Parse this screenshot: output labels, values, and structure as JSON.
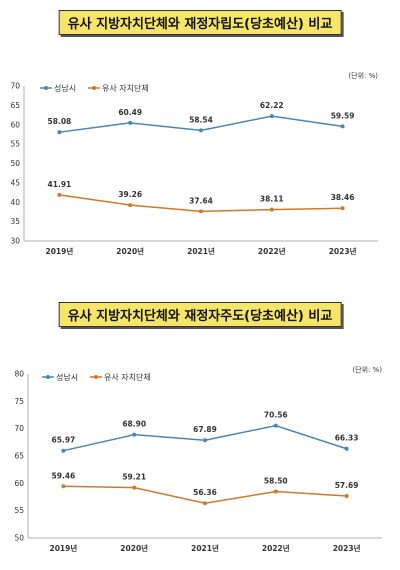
{
  "charts": [
    {
      "title": "유사 지방자치단체와 재정자립도(당초예산) 비교",
      "unit": "(단위: %)",
      "chart_data": {
        "type": "line",
        "categories": [
          "2019년",
          "2020년",
          "2021년",
          "2022년",
          "2023년"
        ],
        "ylim": [
          30,
          70
        ],
        "yticks": [
          30,
          35,
          40,
          45,
          50,
          55,
          60,
          65,
          70
        ],
        "legend": "top-left",
        "grid": false,
        "series": [
          {
            "name": "성남시",
            "color": "#4a86b4",
            "values": [
              58.08,
              60.49,
              58.54,
              62.22,
              59.59
            ],
            "labels": [
              "58.08",
              "60.49",
              "58.54",
              "62.22",
              "59.59"
            ]
          },
          {
            "name": "유사 자치단체",
            "color": "#d2782a",
            "values": [
              41.91,
              39.26,
              37.64,
              38.11,
              38.46
            ],
            "labels": [
              "41.91",
              "39.26",
              "37.64",
              "38.11",
              "38.46"
            ]
          }
        ]
      }
    },
    {
      "title": "유사 지방자치단체와 재정자주도(당초예산) 비교",
      "unit": "(단위: %)",
      "chart_data": {
        "type": "line",
        "categories": [
          "2019년",
          "2020년",
          "2021년",
          "2022년",
          "2023년"
        ],
        "ylim": [
          50,
          80
        ],
        "yticks": [
          50,
          55,
          60,
          65,
          70,
          75,
          80
        ],
        "legend": "top-left",
        "grid": false,
        "series": [
          {
            "name": "성남시",
            "color": "#4a86b4",
            "values": [
              65.97,
              68.9,
              67.89,
              70.56,
              66.33
            ],
            "labels": [
              "65.97",
              "68.90",
              "67.89",
              "70.56",
              "66.33"
            ]
          },
          {
            "name": "유사 자치단체",
            "color": "#d2782a",
            "values": [
              59.46,
              59.21,
              56.36,
              58.5,
              57.69
            ],
            "labels": [
              "59.46",
              "59.21",
              "56.36",
              "58.50",
              "57.69"
            ]
          }
        ]
      }
    }
  ]
}
